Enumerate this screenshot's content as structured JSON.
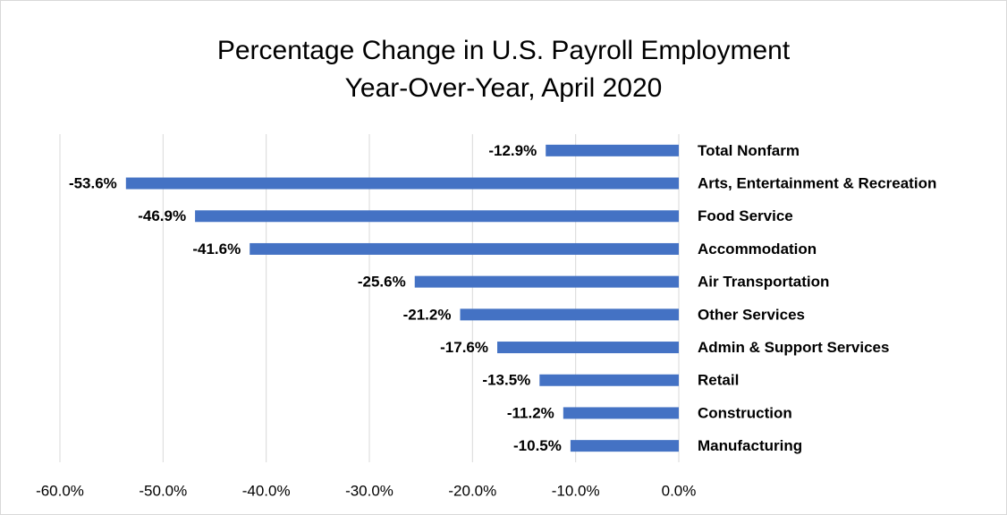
{
  "chart_data": {
    "type": "bar",
    "orientation": "horizontal",
    "title": "Percentage Change in U.S. Payroll Employment",
    "subtitle": "Year-Over-Year, April 2020",
    "categories": [
      "Total Nonfarm",
      "Arts, Entertainment & Recreation",
      "Food Service",
      "Accommodation",
      "Air Transportation",
      "Other Services",
      "Admin & Support Services",
      "Retail",
      "Construction",
      "Manufacturing"
    ],
    "values": [
      -12.9,
      -53.6,
      -46.9,
      -41.6,
      -25.6,
      -21.2,
      -17.6,
      -13.5,
      -11.2,
      -10.5
    ],
    "value_labels": [
      "-12.9%",
      "-53.6%",
      "-46.9%",
      "-41.6%",
      "-25.6%",
      "-21.2%",
      "-17.6%",
      "-13.5%",
      "-11.2%",
      "-10.5%"
    ],
    "color": "#4472c4",
    "xlim": [
      -60,
      0
    ],
    "xticks": [
      {
        "value": -60,
        "label": "-60.0%"
      },
      {
        "value": -50,
        "label": "-50.0%"
      },
      {
        "value": -40,
        "label": "-40.0%"
      },
      {
        "value": -30,
        "label": "-30.0%"
      },
      {
        "value": -20,
        "label": "-20.0%"
      },
      {
        "value": -10,
        "label": "-10.0%"
      },
      {
        "value": 0,
        "label": "0.0%"
      }
    ],
    "grid": true
  }
}
